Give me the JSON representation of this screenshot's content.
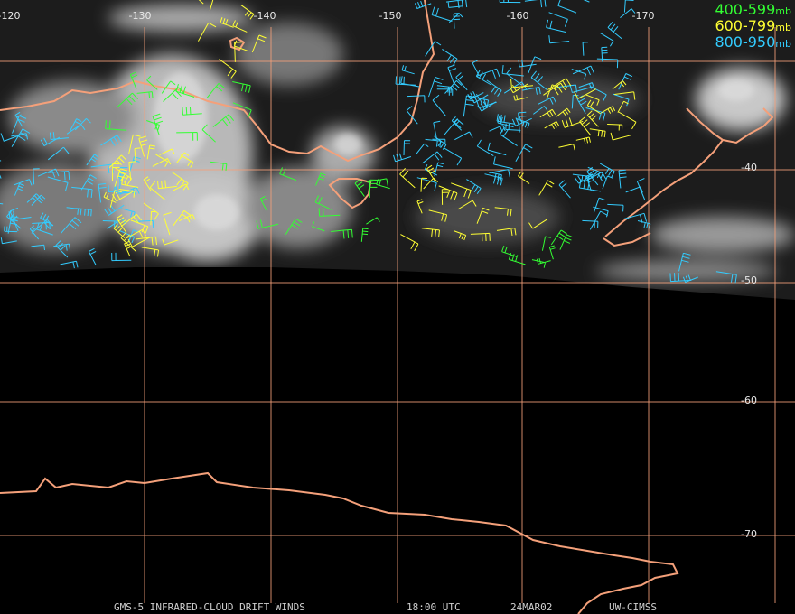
{
  "map": {
    "longitude_labels": [
      "-120",
      "-130",
      "-140",
      "-150",
      "-160",
      "-170"
    ],
    "latitude_labels": [
      "-40",
      "-50",
      "-60",
      "-70"
    ],
    "legend": [
      {
        "range": "400-599",
        "unit": "mb",
        "color": "#33ff33"
      },
      {
        "range": "600-799",
        "unit": "mb",
        "color": "#ffff33"
      },
      {
        "range": "800-950",
        "unit": "mb",
        "color": "#33ccff"
      }
    ],
    "footer": {
      "title": "GMS-5 INFRARED-CLOUD DRIFT WINDS",
      "time": "18:00 UTC",
      "date": "24MAR02",
      "source": "UW-CIMSS"
    }
  }
}
